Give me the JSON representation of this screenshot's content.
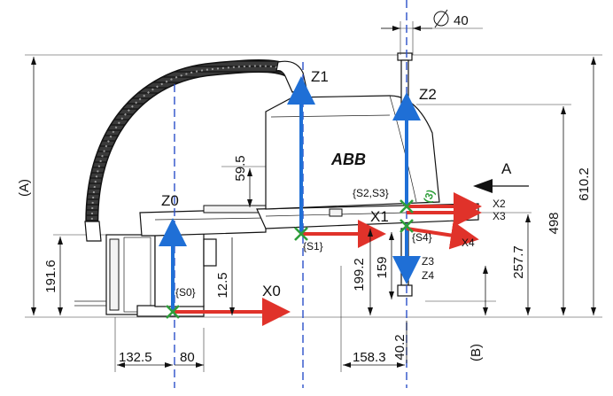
{
  "labels": {
    "z0": "Z0",
    "z1": "Z1",
    "z2": "Z2",
    "z3": "Z3",
    "z4": "Z4",
    "x0": "X0",
    "x1": "X1",
    "x2": "X2",
    "x3": "X3",
    "x4": "X4",
    "s0": "{S0}",
    "s1": "{S1}",
    "s23": "{S2,S3}",
    "s4": "{S4}",
    "circled": "(3)",
    "view_a": "A",
    "brand": "ABB"
  },
  "dimensions": {
    "d40": "40",
    "d191_6": "191.6",
    "d12_5": "12.5",
    "d59_5": "59.5",
    "d199_2": "199.2",
    "d159": "159",
    "d257_7": "257.7",
    "d498": "498",
    "d610_2": "610.2",
    "d132_5": "132.5",
    "d80": "80",
    "d158_3": "158.3",
    "d40_2": "40.2",
    "ref_a": "(A)",
    "ref_b": "(B)"
  },
  "colors": {
    "axis_blue": "#1f6fd6",
    "axis_red": "#e0322a",
    "centerline": "#2b4fc9",
    "frame_origin": "#2e9e3a"
  }
}
